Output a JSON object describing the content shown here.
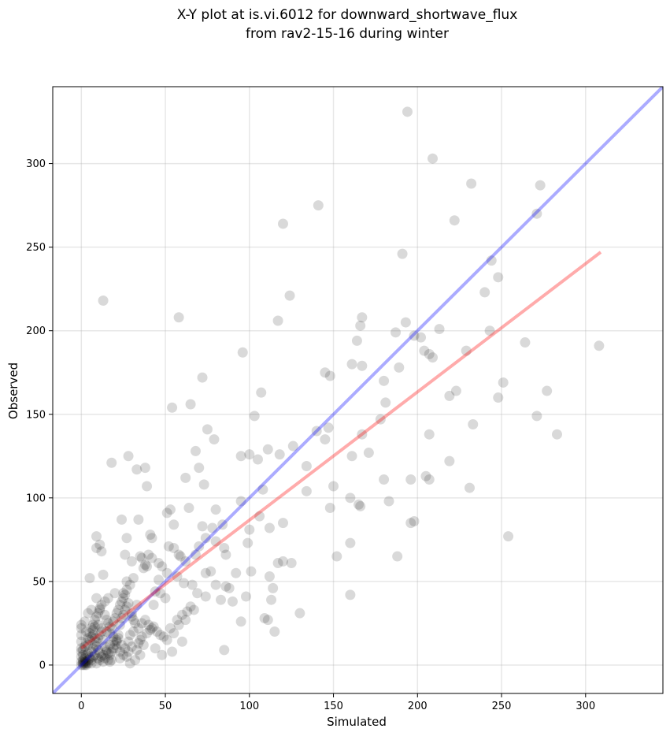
{
  "chart_data": {
    "type": "scatter",
    "title_line1": "X-Y plot at is.vi.6012 for downward_shortwave_flux",
    "title_line2": "from rav2-15-16 during winter",
    "xlabel": "Simulated",
    "ylabel": "Observed",
    "xlim": [
      -17,
      346
    ],
    "ylim": [
      -17,
      346
    ],
    "xticks": [
      0,
      50,
      100,
      150,
      200,
      250,
      300
    ],
    "yticks": [
      0,
      50,
      100,
      150,
      200,
      250,
      300
    ],
    "grid": true,
    "point_color": "#000000",
    "point_opacity": 0.15,
    "colors": {
      "one_to_one": "#0000ff",
      "regression": "#ff0000",
      "one_to_one_alpha": 0.33,
      "regression_alpha": 0.33
    },
    "one_to_one_line": {
      "x": [
        -17,
        346
      ],
      "y": [
        -17,
        346
      ]
    },
    "regression_line": {
      "x": [
        0,
        309
      ],
      "y": [
        10,
        247
      ]
    },
    "points": [
      [
        194,
        331
      ],
      [
        209,
        303
      ],
      [
        232,
        288
      ],
      [
        273,
        287
      ],
      [
        271,
        270
      ],
      [
        141,
        275
      ],
      [
        222,
        266
      ],
      [
        120,
        264
      ],
      [
        191,
        246
      ],
      [
        244,
        242
      ],
      [
        248,
        232
      ],
      [
        240,
        223
      ],
      [
        124,
        221
      ],
      [
        13,
        218
      ],
      [
        58,
        208
      ],
      [
        167,
        208
      ],
      [
        193,
        205
      ],
      [
        166,
        203
      ],
      [
        117,
        206
      ],
      [
        213,
        201
      ],
      [
        243,
        200
      ],
      [
        187,
        199
      ],
      [
        198,
        197
      ],
      [
        202,
        196
      ],
      [
        164,
        194
      ],
      [
        264,
        193
      ],
      [
        96,
        187
      ],
      [
        229,
        188
      ],
      [
        204,
        188
      ],
      [
        207,
        186
      ],
      [
        209,
        184
      ],
      [
        308,
        191
      ],
      [
        145,
        175
      ],
      [
        148,
        173
      ],
      [
        161,
        180
      ],
      [
        167,
        179
      ],
      [
        72,
        172
      ],
      [
        180,
        170
      ],
      [
        189,
        178
      ],
      [
        251,
        169
      ],
      [
        223,
        164
      ],
      [
        277,
        164
      ],
      [
        107,
        163
      ],
      [
        219,
        161
      ],
      [
        248,
        160
      ],
      [
        103,
        149
      ],
      [
        181,
        157
      ],
      [
        271,
        149
      ],
      [
        65,
        156
      ],
      [
        54,
        154
      ],
      [
        147,
        142
      ],
      [
        167,
        138
      ],
      [
        233,
        144
      ],
      [
        283,
        138
      ],
      [
        145,
        135
      ],
      [
        75,
        141
      ],
      [
        79,
        135
      ],
      [
        178,
        147
      ],
      [
        140,
        140
      ],
      [
        207,
        138
      ],
      [
        18,
        121
      ],
      [
        28,
        125
      ],
      [
        68,
        128
      ],
      [
        111,
        129
      ],
      [
        126,
        131
      ],
      [
        100,
        126
      ],
      [
        95,
        125
      ],
      [
        118,
        126
      ],
      [
        105,
        123
      ],
      [
        161,
        125
      ],
      [
        171,
        127
      ],
      [
        134,
        119
      ],
      [
        219,
        122
      ],
      [
        33,
        117
      ],
      [
        38,
        118
      ],
      [
        70,
        118
      ],
      [
        62,
        112
      ],
      [
        73,
        108
      ],
      [
        39,
        107
      ],
      [
        108,
        105
      ],
      [
        134,
        104
      ],
      [
        150,
        107
      ],
      [
        180,
        111
      ],
      [
        196,
        111
      ],
      [
        205,
        113
      ],
      [
        207,
        111
      ],
      [
        231,
        106
      ],
      [
        165,
        96
      ],
      [
        160,
        100
      ],
      [
        183,
        98
      ],
      [
        95,
        98
      ],
      [
        106,
        89
      ],
      [
        120,
        85
      ],
      [
        148,
        94
      ],
      [
        166,
        95
      ],
      [
        196,
        85
      ],
      [
        198,
        86
      ],
      [
        254,
        77
      ],
      [
        53,
        93
      ],
      [
        55,
        84
      ],
      [
        51,
        91
      ],
      [
        64,
        94
      ],
      [
        72,
        83
      ],
      [
        78,
        82
      ],
      [
        84,
        84
      ],
      [
        80,
        93
      ],
      [
        100,
        81
      ],
      [
        112,
        82
      ],
      [
        9,
        77
      ],
      [
        27,
        76
      ],
      [
        34,
        87
      ],
      [
        41,
        78
      ],
      [
        42,
        76
      ],
      [
        55,
        70
      ],
      [
        52,
        71
      ],
      [
        58,
        66
      ],
      [
        59,
        65
      ],
      [
        62,
        62
      ],
      [
        68,
        66
      ],
      [
        70,
        71
      ],
      [
        74,
        76
      ],
      [
        80,
        74
      ],
      [
        85,
        70
      ],
      [
        86,
        66
      ],
      [
        99,
        73
      ],
      [
        160,
        73
      ],
      [
        42,
        64
      ],
      [
        46,
        61
      ],
      [
        48,
        59
      ],
      [
        51,
        55
      ],
      [
        57,
        53
      ],
      [
        61,
        49
      ],
      [
        66,
        48
      ],
      [
        69,
        43
      ],
      [
        74,
        41
      ],
      [
        77,
        56
      ],
      [
        74,
        55
      ],
      [
        80,
        48
      ],
      [
        83,
        39
      ],
      [
        86,
        47
      ],
      [
        88,
        46
      ],
      [
        90,
        38
      ],
      [
        92,
        55
      ],
      [
        98,
        41
      ],
      [
        101,
        56
      ],
      [
        109,
        28
      ],
      [
        111,
        27
      ],
      [
        112,
        53
      ],
      [
        113,
        39
      ],
      [
        114,
        46
      ],
      [
        117,
        61
      ],
      [
        120,
        62
      ],
      [
        125,
        61
      ],
      [
        115,
        20
      ],
      [
        130,
        31
      ],
      [
        152,
        65
      ],
      [
        160,
        42
      ],
      [
        188,
        65
      ],
      [
        9,
        70
      ],
      [
        11,
        72
      ],
      [
        12,
        68
      ],
      [
        13,
        54
      ],
      [
        5,
        52
      ],
      [
        24,
        87
      ],
      [
        26,
        66
      ],
      [
        30,
        62
      ],
      [
        35,
        65
      ],
      [
        38,
        60
      ],
      [
        39,
        59
      ],
      [
        40,
        66
      ],
      [
        36,
        64
      ],
      [
        37,
        58
      ],
      [
        44,
        44
      ],
      [
        46,
        51
      ],
      [
        47,
        43
      ],
      [
        50,
        40
      ],
      [
        43,
        36
      ],
      [
        33,
        36
      ],
      [
        30,
        29
      ],
      [
        25,
        43
      ],
      [
        20,
        43
      ],
      [
        16,
        40
      ],
      [
        14,
        38
      ],
      [
        11,
        33
      ],
      [
        9,
        40
      ],
      [
        6,
        33
      ],
      [
        4,
        31
      ],
      [
        2,
        26
      ],
      [
        3,
        20
      ],
      [
        7,
        21
      ],
      [
        8,
        23
      ],
      [
        10,
        24
      ],
      [
        12,
        22
      ],
      [
        15,
        20
      ],
      [
        17,
        19
      ],
      [
        19,
        17
      ],
      [
        21,
        15
      ],
      [
        22,
        18
      ],
      [
        24,
        12
      ],
      [
        26,
        10
      ],
      [
        28,
        14
      ],
      [
        29,
        18
      ],
      [
        31,
        20
      ],
      [
        34,
        22
      ],
      [
        36,
        25
      ],
      [
        38,
        27
      ],
      [
        40,
        24
      ],
      [
        42,
        22
      ],
      [
        45,
        20
      ],
      [
        47,
        18
      ],
      [
        49,
        17
      ],
      [
        51,
        15
      ],
      [
        53,
        22
      ],
      [
        55,
        19
      ],
      [
        57,
        27
      ],
      [
        60,
        30
      ],
      [
        63,
        32
      ],
      [
        65,
        35
      ],
      [
        67,
        33
      ],
      [
        58,
        24
      ],
      [
        54,
        8
      ],
      [
        48,
        6
      ],
      [
        44,
        10
      ],
      [
        37,
        12
      ],
      [
        33,
        9
      ],
      [
        27,
        5
      ],
      [
        23,
        4
      ],
      [
        18,
        3
      ],
      [
        13,
        2
      ],
      [
        9,
        1
      ],
      [
        6,
        1
      ],
      [
        3,
        1
      ],
      [
        1,
        0
      ],
      [
        0,
        0
      ],
      [
        1,
        1
      ],
      [
        2,
        2
      ],
      [
        0,
        2
      ],
      [
        1,
        3
      ],
      [
        2,
        4
      ],
      [
        3,
        6
      ],
      [
        4,
        7
      ],
      [
        5,
        5
      ],
      [
        6,
        8
      ],
      [
        7,
        10
      ],
      [
        8,
        12
      ],
      [
        9,
        14
      ],
      [
        10,
        16
      ],
      [
        11,
        18
      ],
      [
        12,
        20
      ],
      [
        13,
        15
      ],
      [
        14,
        11
      ],
      [
        15,
        9
      ],
      [
        16,
        7
      ],
      [
        17,
        6
      ],
      [
        18,
        8
      ],
      [
        19,
        10
      ],
      [
        20,
        12
      ],
      [
        21,
        14
      ],
      [
        22,
        16
      ],
      [
        23,
        24
      ],
      [
        24,
        28
      ],
      [
        25,
        30
      ],
      [
        26,
        33
      ],
      [
        27,
        35
      ],
      [
        28,
        37
      ],
      [
        30,
        31
      ],
      [
        31,
        27
      ],
      [
        32,
        25
      ],
      [
        34,
        13
      ],
      [
        35,
        15
      ],
      [
        36,
        17
      ],
      [
        39,
        19
      ],
      [
        41,
        21
      ],
      [
        43,
        23
      ],
      [
        4,
        12
      ],
      [
        5,
        15
      ],
      [
        6,
        17
      ],
      [
        7,
        18
      ],
      [
        8,
        16
      ],
      [
        9,
        11
      ],
      [
        10,
        9
      ],
      [
        11,
        7
      ],
      [
        12,
        5
      ],
      [
        14,
        4
      ],
      [
        16,
        3
      ],
      [
        17,
        2
      ],
      [
        0,
        5
      ],
      [
        0,
        8
      ],
      [
        0,
        10
      ],
      [
        0,
        14
      ],
      [
        0,
        18
      ],
      [
        0,
        22
      ],
      [
        0,
        24
      ],
      [
        1,
        6
      ],
      [
        1,
        9
      ],
      [
        2,
        11
      ],
      [
        3,
        13
      ],
      [
        4,
        16
      ],
      [
        5,
        19
      ],
      [
        6,
        22
      ],
      [
        7,
        24
      ],
      [
        8,
        27
      ],
      [
        9,
        29
      ],
      [
        10,
        31
      ],
      [
        11,
        34
      ],
      [
        12,
        36
      ],
      [
        14,
        30
      ],
      [
        15,
        27
      ],
      [
        16,
        25
      ],
      [
        17,
        23
      ],
      [
        18,
        22
      ],
      [
        19,
        26
      ],
      [
        20,
        28
      ],
      [
        21,
        31
      ],
      [
        22,
        33
      ],
      [
        23,
        36
      ],
      [
        24,
        38
      ],
      [
        25,
        40
      ],
      [
        26,
        42
      ],
      [
        27,
        45
      ],
      [
        29,
        48
      ],
      [
        31,
        52
      ],
      [
        29,
        1
      ],
      [
        32,
        3
      ],
      [
        35,
        6
      ],
      [
        60,
        14
      ],
      [
        85,
        9
      ],
      [
        95,
        26
      ],
      [
        62,
        27
      ],
      [
        27,
        50
      ],
      [
        3,
        2
      ],
      [
        2,
        1
      ],
      [
        4,
        3
      ],
      [
        5,
        4
      ],
      [
        1,
        2
      ],
      [
        2,
        0
      ],
      [
        3,
        0
      ],
      [
        4,
        1
      ],
      [
        6,
        3
      ],
      [
        7,
        5
      ],
      [
        8,
        6
      ],
      [
        10,
        4
      ],
      [
        11,
        3
      ],
      [
        13,
        6
      ],
      [
        15,
        8
      ],
      [
        17,
        12
      ],
      [
        19,
        14
      ],
      [
        21,
        10
      ],
      [
        23,
        8
      ],
      [
        25,
        6
      ],
      [
        28,
        8
      ],
      [
        30,
        11
      ]
    ]
  }
}
